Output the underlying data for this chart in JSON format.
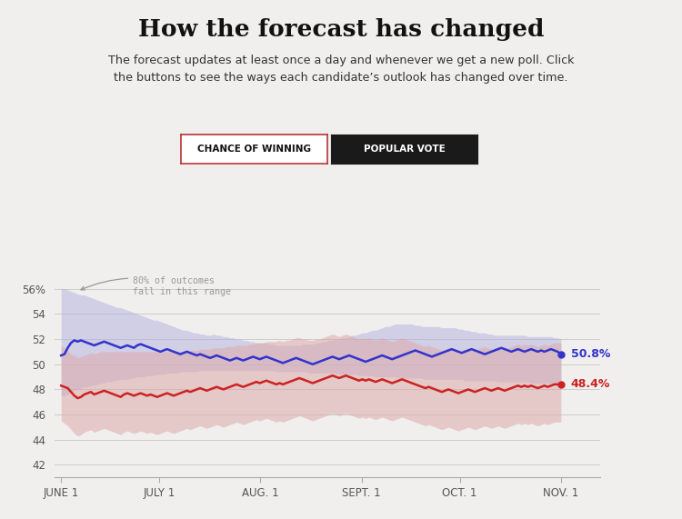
{
  "title": "How the forecast has changed",
  "subtitle": "The forecast updates at least once a day and whenever we get a new poll. Click\nthe buttons to see the ways each candidate’s outlook has changed over time.",
  "background_color": "#f0efed",
  "button1_text": "CHANCE OF WINNING",
  "button2_text": "POPULAR VOTE",
  "x_labels": [
    "JUNE 1",
    "JULY 1",
    "AUG. 1",
    "SEPT. 1",
    "OCT. 1",
    "NOV. 1"
  ],
  "x_ticks": [
    0,
    30,
    61,
    92,
    122,
    153
  ],
  "y_ticks": [
    42,
    44,
    46,
    48,
    50,
    52,
    54,
    56
  ],
  "ylim": [
    41,
    57.5
  ],
  "xlim": [
    -2,
    165
  ],
  "blue_final": "50.8%",
  "red_final": "48.4%",
  "blue_color": "#3333cc",
  "red_color": "#cc2222",
  "blue_fill_color": "#aaaadd",
  "red_fill_color": "#ddaaaa",
  "annotation_text": "80% of outcomes\nfall in this range",
  "blue_line": [
    50.7,
    50.8,
    51.3,
    51.7,
    51.9,
    51.8,
    51.9,
    51.8,
    51.7,
    51.6,
    51.5,
    51.6,
    51.7,
    51.8,
    51.7,
    51.6,
    51.5,
    51.4,
    51.3,
    51.4,
    51.5,
    51.4,
    51.3,
    51.5,
    51.6,
    51.5,
    51.4,
    51.3,
    51.2,
    51.1,
    51.0,
    51.1,
    51.2,
    51.1,
    51.0,
    50.9,
    50.8,
    50.9,
    51.0,
    50.9,
    50.8,
    50.7,
    50.8,
    50.7,
    50.6,
    50.5,
    50.6,
    50.7,
    50.6,
    50.5,
    50.4,
    50.3,
    50.4,
    50.5,
    50.4,
    50.3,
    50.4,
    50.5,
    50.6,
    50.5,
    50.4,
    50.5,
    50.6,
    50.5,
    50.4,
    50.3,
    50.2,
    50.1,
    50.2,
    50.3,
    50.4,
    50.5,
    50.4,
    50.3,
    50.2,
    50.1,
    50.0,
    50.1,
    50.2,
    50.3,
    50.4,
    50.5,
    50.6,
    50.5,
    50.4,
    50.5,
    50.6,
    50.7,
    50.6,
    50.5,
    50.4,
    50.3,
    50.2,
    50.3,
    50.4,
    50.5,
    50.6,
    50.7,
    50.6,
    50.5,
    50.4,
    50.5,
    50.6,
    50.7,
    50.8,
    50.9,
    51.0,
    51.1,
    51.0,
    50.9,
    50.8,
    50.7,
    50.6,
    50.7,
    50.8,
    50.9,
    51.0,
    51.1,
    51.2,
    51.1,
    51.0,
    50.9,
    51.0,
    51.1,
    51.2,
    51.1,
    51.0,
    50.9,
    50.8,
    50.9,
    51.0,
    51.1,
    51.2,
    51.3,
    51.2,
    51.1,
    51.0,
    51.1,
    51.2,
    51.1,
    51.0,
    51.1,
    51.2,
    51.1,
    51.0,
    51.1,
    51.0,
    51.1,
    51.2,
    51.1,
    51.0,
    50.8
  ],
  "red_line": [
    48.3,
    48.2,
    48.1,
    47.8,
    47.5,
    47.3,
    47.4,
    47.6,
    47.7,
    47.8,
    47.6,
    47.7,
    47.8,
    47.9,
    47.8,
    47.7,
    47.6,
    47.5,
    47.4,
    47.6,
    47.7,
    47.6,
    47.5,
    47.6,
    47.7,
    47.6,
    47.5,
    47.6,
    47.5,
    47.4,
    47.5,
    47.6,
    47.7,
    47.6,
    47.5,
    47.6,
    47.7,
    47.8,
    47.9,
    47.8,
    47.9,
    48.0,
    48.1,
    48.0,
    47.9,
    48.0,
    48.1,
    48.2,
    48.1,
    48.0,
    48.1,
    48.2,
    48.3,
    48.4,
    48.3,
    48.2,
    48.3,
    48.4,
    48.5,
    48.6,
    48.5,
    48.6,
    48.7,
    48.6,
    48.5,
    48.4,
    48.5,
    48.4,
    48.5,
    48.6,
    48.7,
    48.8,
    48.9,
    48.8,
    48.7,
    48.6,
    48.5,
    48.6,
    48.7,
    48.8,
    48.9,
    49.0,
    49.1,
    49.0,
    48.9,
    49.0,
    49.1,
    49.0,
    48.9,
    48.8,
    48.7,
    48.8,
    48.7,
    48.8,
    48.7,
    48.6,
    48.7,
    48.8,
    48.7,
    48.6,
    48.5,
    48.6,
    48.7,
    48.8,
    48.7,
    48.6,
    48.5,
    48.4,
    48.3,
    48.2,
    48.1,
    48.2,
    48.1,
    48.0,
    47.9,
    47.8,
    47.9,
    48.0,
    47.9,
    47.8,
    47.7,
    47.8,
    47.9,
    48.0,
    47.9,
    47.8,
    47.9,
    48.0,
    48.1,
    48.0,
    47.9,
    48.0,
    48.1,
    48.0,
    47.9,
    48.0,
    48.1,
    48.2,
    48.3,
    48.2,
    48.3,
    48.2,
    48.3,
    48.2,
    48.1,
    48.2,
    48.3,
    48.2,
    48.3,
    48.4,
    48.4,
    48.4
  ],
  "blue_upper": [
    56.0,
    56.0,
    55.9,
    55.8,
    55.7,
    55.6,
    55.5,
    55.5,
    55.4,
    55.3,
    55.2,
    55.1,
    55.0,
    54.9,
    54.8,
    54.7,
    54.6,
    54.5,
    54.5,
    54.4,
    54.3,
    54.2,
    54.1,
    54.0,
    53.9,
    53.8,
    53.7,
    53.6,
    53.5,
    53.5,
    53.4,
    53.3,
    53.2,
    53.1,
    53.0,
    52.9,
    52.8,
    52.7,
    52.7,
    52.6,
    52.5,
    52.5,
    52.4,
    52.4,
    52.3,
    52.3,
    52.4,
    52.3,
    52.3,
    52.2,
    52.2,
    52.1,
    52.1,
    52.0,
    52.0,
    51.9,
    51.9,
    51.8,
    51.8,
    51.7,
    51.7,
    51.7,
    51.7,
    51.6,
    51.6,
    51.5,
    51.5,
    51.5,
    51.5,
    51.5,
    51.5,
    51.5,
    51.5,
    51.6,
    51.6,
    51.6,
    51.6,
    51.7,
    51.7,
    51.8,
    51.8,
    51.9,
    51.9,
    52.0,
    52.0,
    52.1,
    52.1,
    52.2,
    52.3,
    52.3,
    52.4,
    52.5,
    52.5,
    52.6,
    52.7,
    52.7,
    52.8,
    52.9,
    53.0,
    53.0,
    53.1,
    53.2,
    53.2,
    53.2,
    53.2,
    53.2,
    53.2,
    53.1,
    53.1,
    53.0,
    53.0,
    53.0,
    53.0,
    53.0,
    53.0,
    52.9,
    52.9,
    52.9,
    52.9,
    52.9,
    52.8,
    52.8,
    52.7,
    52.7,
    52.6,
    52.6,
    52.5,
    52.5,
    52.5,
    52.4,
    52.4,
    52.3,
    52.3,
    52.3,
    52.3,
    52.3,
    52.3,
    52.3,
    52.3,
    52.3,
    52.3,
    52.2,
    52.2,
    52.2,
    52.2,
    52.2,
    52.2,
    52.2,
    52.2,
    52.1,
    52.1,
    52.0
  ],
  "blue_lower": [
    47.5,
    47.5,
    47.6,
    47.8,
    47.9,
    48.0,
    48.1,
    48.2,
    48.2,
    48.3,
    48.3,
    48.4,
    48.5,
    48.5,
    48.6,
    48.6,
    48.7,
    48.7,
    48.8,
    48.8,
    48.8,
    48.9,
    48.9,
    49.0,
    49.0,
    49.0,
    49.1,
    49.1,
    49.1,
    49.2,
    49.2,
    49.2,
    49.3,
    49.3,
    49.3,
    49.3,
    49.4,
    49.4,
    49.4,
    49.4,
    49.4,
    49.4,
    49.5,
    49.5,
    49.5,
    49.5,
    49.5,
    49.5,
    49.5,
    49.5,
    49.5,
    49.5,
    49.5,
    49.5,
    49.5,
    49.5,
    49.5,
    49.5,
    49.5,
    49.5,
    49.5,
    49.5,
    49.5,
    49.5,
    49.5,
    49.4,
    49.4,
    49.4,
    49.4,
    49.4,
    49.4,
    49.4,
    49.4,
    49.4,
    49.4,
    49.3,
    49.3,
    49.3,
    49.3,
    49.3,
    49.3,
    49.3,
    49.3,
    49.3,
    49.2,
    49.2,
    49.2,
    49.2,
    49.2,
    49.2,
    49.1,
    49.1,
    49.1,
    49.1,
    49.1,
    49.0,
    49.0,
    49.0,
    49.0,
    49.0,
    49.0,
    49.0,
    48.9,
    48.9,
    48.9,
    48.9,
    48.9,
    48.9,
    48.9,
    48.9,
    48.8,
    48.8,
    48.8,
    48.8,
    48.8,
    48.8,
    48.8,
    48.8,
    48.8,
    48.8,
    48.8,
    48.8,
    48.7,
    48.7,
    48.7,
    48.7,
    48.7,
    48.7,
    48.7,
    48.7,
    48.7,
    48.7,
    48.6,
    48.6,
    48.6,
    48.6,
    48.6,
    48.6,
    48.6,
    48.6,
    48.6,
    48.6,
    48.5,
    48.5,
    48.5,
    48.5,
    48.5,
    48.5,
    48.5,
    48.5,
    48.5,
    48.5
  ],
  "red_upper": [
    51.5,
    51.3,
    51.1,
    50.8,
    50.7,
    50.5,
    50.6,
    50.7,
    50.8,
    50.9,
    50.8,
    50.9,
    51.0,
    51.0,
    51.0,
    51.0,
    51.0,
    51.0,
    51.0,
    51.0,
    51.0,
    51.0,
    51.0,
    51.0,
    51.0,
    51.0,
    51.0,
    51.0,
    51.0,
    51.0,
    51.0,
    51.0,
    51.0,
    51.0,
    51.0,
    51.0,
    51.0,
    51.0,
    51.1,
    51.1,
    51.1,
    51.1,
    51.2,
    51.2,
    51.2,
    51.2,
    51.3,
    51.3,
    51.3,
    51.3,
    51.4,
    51.4,
    51.4,
    51.5,
    51.5,
    51.5,
    51.5,
    51.6,
    51.6,
    51.7,
    51.7,
    51.7,
    51.8,
    51.8,
    51.8,
    51.8,
    51.9,
    51.8,
    51.9,
    51.9,
    52.0,
    52.1,
    52.1,
    52.0,
    52.0,
    51.9,
    51.9,
    52.0,
    52.0,
    52.1,
    52.2,
    52.3,
    52.4,
    52.3,
    52.2,
    52.3,
    52.4,
    52.3,
    52.2,
    52.1,
    52.0,
    52.1,
    52.0,
    52.1,
    52.0,
    51.9,
    52.0,
    52.1,
    52.0,
    51.9,
    51.8,
    51.9,
    52.0,
    52.1,
    52.0,
    51.9,
    51.8,
    51.7,
    51.6,
    51.5,
    51.4,
    51.5,
    51.4,
    51.3,
    51.2,
    51.1,
    51.2,
    51.3,
    51.2,
    51.1,
    51.0,
    51.1,
    51.2,
    51.3,
    51.2,
    51.1,
    51.2,
    51.3,
    51.4,
    51.3,
    51.2,
    51.3,
    51.4,
    51.3,
    51.2,
    51.3,
    51.4,
    51.5,
    51.6,
    51.5,
    51.6,
    51.5,
    51.6,
    51.5,
    51.4,
    51.5,
    51.6,
    51.5,
    51.6,
    51.7,
    51.7,
    51.7
  ],
  "red_lower": [
    45.5,
    45.3,
    45.1,
    44.8,
    44.5,
    44.3,
    44.4,
    44.6,
    44.7,
    44.8,
    44.6,
    44.7,
    44.8,
    44.9,
    44.8,
    44.7,
    44.6,
    44.5,
    44.4,
    44.6,
    44.7,
    44.6,
    44.5,
    44.6,
    44.7,
    44.6,
    44.5,
    44.6,
    44.5,
    44.4,
    44.5,
    44.6,
    44.7,
    44.6,
    44.5,
    44.6,
    44.7,
    44.8,
    44.9,
    44.8,
    44.9,
    45.0,
    45.1,
    45.0,
    44.9,
    45.0,
    45.1,
    45.2,
    45.1,
    45.0,
    45.1,
    45.2,
    45.3,
    45.4,
    45.3,
    45.2,
    45.3,
    45.4,
    45.5,
    45.6,
    45.5,
    45.6,
    45.7,
    45.6,
    45.5,
    45.4,
    45.5,
    45.4,
    45.5,
    45.6,
    45.7,
    45.8,
    45.9,
    45.8,
    45.7,
    45.6,
    45.5,
    45.6,
    45.7,
    45.8,
    45.9,
    46.0,
    46.1,
    46.0,
    45.9,
    46.0,
    46.1,
    46.0,
    45.9,
    45.8,
    45.7,
    45.8,
    45.7,
    45.8,
    45.7,
    45.6,
    45.7,
    45.8,
    45.7,
    45.6,
    45.5,
    45.6,
    45.7,
    45.8,
    45.7,
    45.6,
    45.5,
    45.4,
    45.3,
    45.2,
    45.1,
    45.2,
    45.1,
    45.0,
    44.9,
    44.8,
    44.9,
    45.0,
    44.9,
    44.8,
    44.7,
    44.8,
    44.9,
    45.0,
    44.9,
    44.8,
    44.9,
    45.0,
    45.1,
    45.0,
    44.9,
    45.0,
    45.1,
    45.0,
    44.9,
    45.0,
    45.1,
    45.2,
    45.3,
    45.2,
    45.3,
    45.2,
    45.3,
    45.2,
    45.1,
    45.2,
    45.3,
    45.2,
    45.3,
    45.4,
    45.4,
    45.4
  ]
}
